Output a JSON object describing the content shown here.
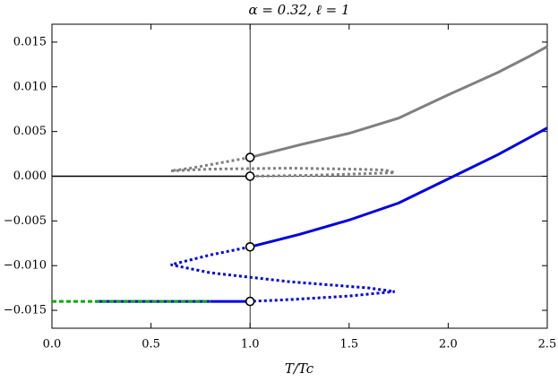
{
  "chart_data": {
    "type": "line",
    "title": "α = 0.32, ℓ = 1",
    "x_label": "T/Tc",
    "xlim": [
      0,
      2.5
    ],
    "ylim": [
      -0.017,
      0.017
    ],
    "xticks": [
      {
        "value": 0,
        "label": "0.0"
      },
      {
        "value": 0.5,
        "label": "0.5"
      },
      {
        "value": 1,
        "label": "1.0"
      },
      {
        "value": 1.5,
        "label": "1.5"
      },
      {
        "value": 2,
        "label": "2.0"
      },
      {
        "value": 2.5,
        "label": "2.5"
      }
    ],
    "yticks": [
      {
        "value": -0.015,
        "label": "−0.015"
      },
      {
        "value": -0.01,
        "label": "−0.010"
      },
      {
        "value": -0.005,
        "label": "−0.005"
      },
      {
        "value": 0,
        "label": "0.000"
      },
      {
        "value": 0.005,
        "label": "0.005"
      },
      {
        "value": 0.01,
        "label": "0.010"
      },
      {
        "value": 0.015,
        "label": "0.015"
      }
    ],
    "reference_lines": {
      "x": [
        1
      ],
      "y": [
        0
      ]
    },
    "series": [
      {
        "color": "#808080",
        "style": "solid",
        "x": [
          1,
          1.25,
          1.5,
          1.75,
          2,
          2.25,
          2.4,
          2.5
        ],
        "values": [
          0.0021,
          0.0035,
          0.0048,
          0.0065,
          0.0091,
          0.0116,
          0.0133,
          0.0145
        ]
      },
      {
        "color": "#808080",
        "style": "dotted",
        "x": [
          1,
          0.9,
          0.8,
          0.7,
          0.6,
          0.8,
          1.2,
          1.5,
          1.68,
          1.73,
          1.6,
          1.3,
          1
        ],
        "values": [
          0.0021,
          0.0017,
          0.0013,
          0.0009,
          0.0006,
          0.0008,
          0.0009,
          0.0008,
          0.0007,
          0.0004,
          0.0003,
          0.0001,
          0
        ]
      },
      {
        "color": "#000000",
        "style": "solid",
        "x": [
          0,
          0.5,
          1
        ],
        "values": [
          0,
          0,
          0
        ]
      },
      {
        "color": "#0000e0",
        "style": "solid",
        "x": [
          1,
          1.25,
          1.5,
          1.75,
          2,
          2.25,
          2.5
        ],
        "values": [
          -0.0079,
          -0.0065,
          -0.0049,
          -0.003,
          -0.0003,
          0.0024,
          0.0054
        ]
      },
      {
        "color": "#0000e0",
        "style": "dotted",
        "x": [
          1,
          0.8,
          0.6,
          0.8,
          1.2,
          1.6,
          1.73,
          1.5,
          1.2,
          1
        ],
        "values": [
          -0.0079,
          -0.0088,
          -0.0099,
          -0.0108,
          -0.0118,
          -0.0125,
          -0.0129,
          -0.0134,
          -0.0138,
          -0.014
        ]
      },
      {
        "color": "#0000e0",
        "style": "solid",
        "x": [
          0.22,
          0.6,
          1
        ],
        "values": [
          -0.014,
          -0.014,
          -0.014
        ]
      },
      {
        "color": "#00aa00",
        "style": "dashed",
        "x": [
          0,
          0.4,
          0.8
        ],
        "values": [
          -0.014,
          -0.014,
          -0.014
        ]
      },
      {
        "color": "#000000",
        "style": "marker",
        "x": [
          1,
          1,
          1,
          1
        ],
        "values": [
          0.0021,
          0,
          -0.0079,
          -0.014
        ]
      }
    ]
  }
}
